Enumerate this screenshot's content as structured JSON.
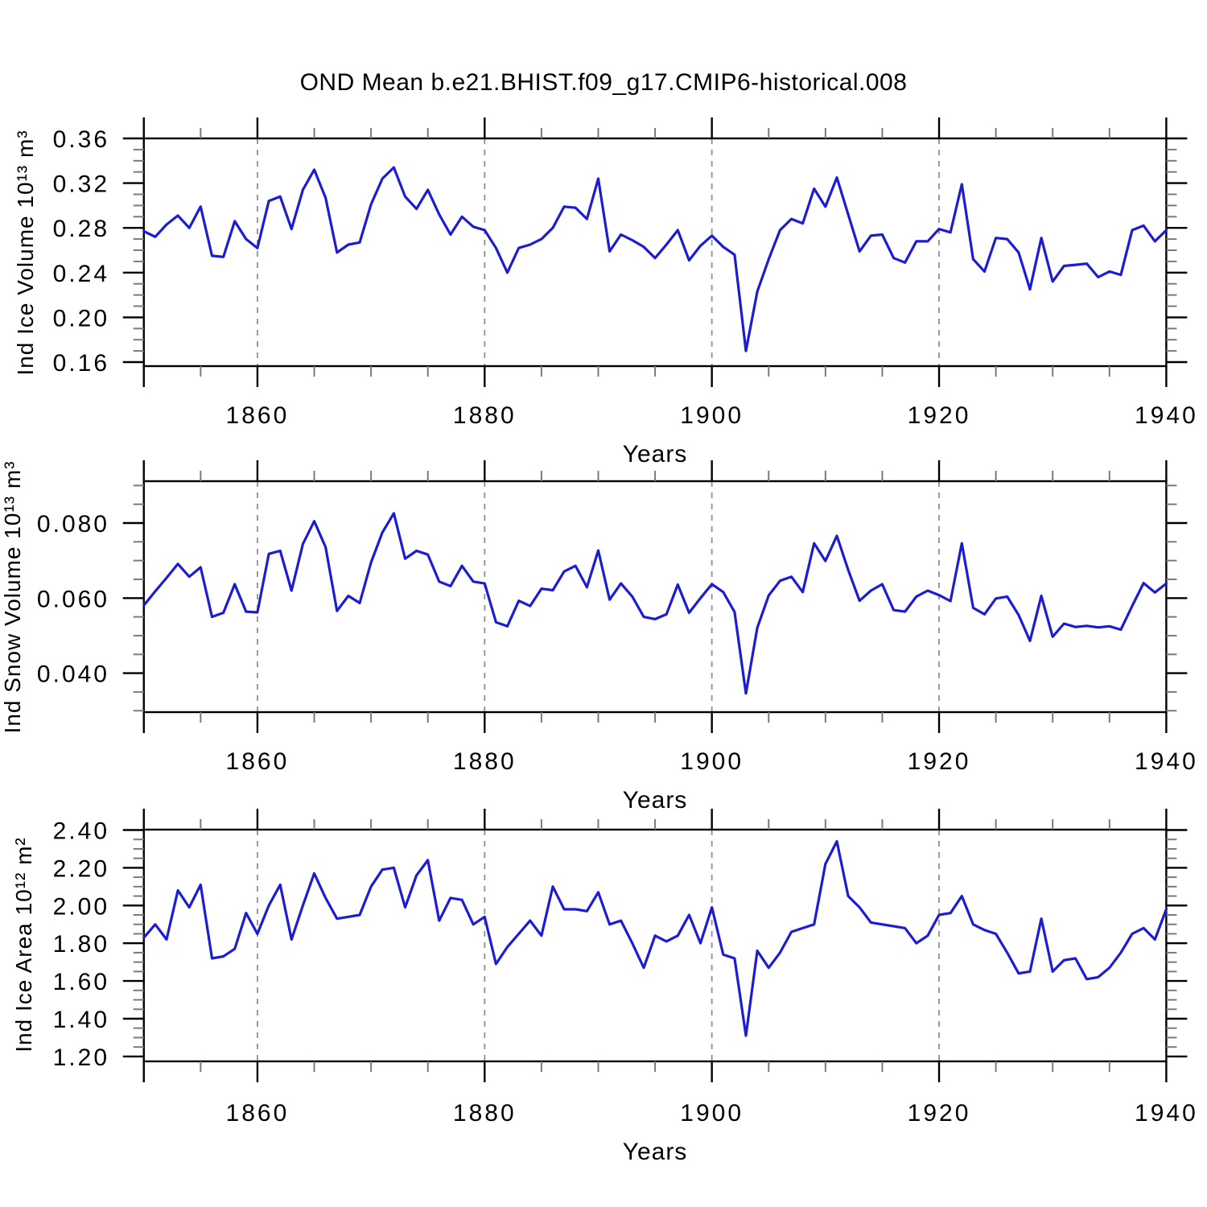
{
  "page_title": "OND Mean b.e21.BHIST.f09_g17.CMIP6-historical.008",
  "colors": {
    "line": "#1c1cd2",
    "grid": "#909090",
    "axis": "#000000",
    "background": "#ffffff"
  },
  "chart_data": [
    {
      "type": "line",
      "id": "ice-volume",
      "title": "OND Mean b.e21.BHIST.f09_g17.CMIP6-historical.008",
      "ylabel": "Ind Ice Volume 10¹³ m³",
      "xlabel": "Years",
      "x_start": 1850,
      "x_end": 1940,
      "x_step": 1,
      "xtick_labels": [
        "1860",
        "1880",
        "1900",
        "1920",
        "1940"
      ],
      "grid_years": [
        1860,
        1880,
        1900,
        1920
      ],
      "ylim": [
        0.156,
        0.36
      ],
      "ytick_minor_step": 0.01,
      "yticks": [
        {
          "v": 0.36,
          "label": "0.36"
        },
        {
          "v": 0.32,
          "label": "0.32"
        },
        {
          "v": 0.28,
          "label": "0.28"
        },
        {
          "v": 0.24,
          "label": "0.24"
        },
        {
          "v": 0.2,
          "label": "0.20"
        },
        {
          "v": 0.16,
          "label": "0.16"
        }
      ],
      "values": [
        0.277,
        0.272,
        0.283,
        0.291,
        0.28,
        0.299,
        0.255,
        0.254,
        0.286,
        0.27,
        0.262,
        0.304,
        0.308,
        0.279,
        0.314,
        0.332,
        0.307,
        0.258,
        0.265,
        0.267,
        0.301,
        0.324,
        0.334,
        0.308,
        0.297,
        0.314,
        0.292,
        0.274,
        0.29,
        0.281,
        0.278,
        0.262,
        0.24,
        0.262,
        0.265,
        0.27,
        0.28,
        0.299,
        0.298,
        0.288,
        0.324,
        0.259,
        0.274,
        0.269,
        0.263,
        0.253,
        0.265,
        0.278,
        0.251,
        0.264,
        0.273,
        0.263,
        0.256,
        0.17,
        0.223,
        0.252,
        0.278,
        0.288,
        0.284,
        0.315,
        0.299,
        0.325,
        0.292,
        0.259,
        0.273,
        0.274,
        0.253,
        0.249,
        0.268,
        0.268,
        0.279,
        0.276,
        0.319,
        0.252,
        0.241,
        0.271,
        0.27,
        0.258,
        0.225,
        0.271,
        0.232,
        0.246,
        0.247,
        0.248,
        0.236,
        0.241,
        0.238,
        0.278,
        0.282,
        0.268,
        0.278
      ]
    },
    {
      "type": "line",
      "id": "snow-volume",
      "title": "",
      "ylabel": "Ind Snow Volume 10¹³ m³",
      "xlabel": "Years",
      "x_start": 1850,
      "x_end": 1940,
      "x_step": 1,
      "xtick_labels": [
        "1860",
        "1880",
        "1900",
        "1920",
        "1940"
      ],
      "grid_years": [
        1860,
        1880,
        1900,
        1920
      ],
      "ylim": [
        0.0296,
        0.0911
      ],
      "ytick_minor_step": 0.005,
      "yticks": [
        {
          "v": 0.08,
          "label": "0.080"
        },
        {
          "v": 0.06,
          "label": "0.060"
        },
        {
          "v": 0.04,
          "label": "0.040"
        }
      ],
      "values": [
        0.0581,
        0.0618,
        0.0654,
        0.0691,
        0.0657,
        0.0682,
        0.055,
        0.0561,
        0.0637,
        0.0564,
        0.0562,
        0.0718,
        0.0726,
        0.062,
        0.0744,
        0.0805,
        0.0736,
        0.0566,
        0.0606,
        0.0587,
        0.0695,
        0.0775,
        0.0826,
        0.0705,
        0.0726,
        0.0716,
        0.0644,
        0.0632,
        0.0686,
        0.0644,
        0.0639,
        0.0536,
        0.0525,
        0.0593,
        0.0579,
        0.0625,
        0.0621,
        0.0671,
        0.0686,
        0.0629,
        0.0727,
        0.0596,
        0.0639,
        0.0604,
        0.055,
        0.0544,
        0.0557,
        0.0636,
        0.0561,
        0.06,
        0.0637,
        0.0616,
        0.0563,
        0.0346,
        0.0521,
        0.0607,
        0.0646,
        0.0657,
        0.0616,
        0.0746,
        0.0699,
        0.0766,
        0.0675,
        0.0593,
        0.062,
        0.0637,
        0.0568,
        0.0564,
        0.0604,
        0.062,
        0.0608,
        0.0592,
        0.0746,
        0.0574,
        0.0557,
        0.0599,
        0.0604,
        0.0555,
        0.0486,
        0.0606,
        0.0497,
        0.0532,
        0.0523,
        0.0526,
        0.0522,
        0.0525,
        0.0516,
        0.0579,
        0.064,
        0.0615,
        0.0639
      ]
    },
    {
      "type": "line",
      "id": "ice-area",
      "title": "",
      "ylabel": "Ind Ice Area 10¹² m²",
      "xlabel": "Years",
      "x_start": 1850,
      "x_end": 1940,
      "x_step": 1,
      "xtick_labels": [
        "1860",
        "1880",
        "1900",
        "1920",
        "1940"
      ],
      "grid_years": [
        1860,
        1880,
        1900,
        1920
      ],
      "ylim": [
        1.17,
        2.4
      ],
      "ytick_minor_step": 0.05,
      "yticks": [
        {
          "v": 2.4,
          "label": "2.40"
        },
        {
          "v": 2.2,
          "label": "2.20"
        },
        {
          "v": 2.0,
          "label": "2.00"
        },
        {
          "v": 1.8,
          "label": "1.80"
        },
        {
          "v": 1.6,
          "label": "1.60"
        },
        {
          "v": 1.4,
          "label": "1.40"
        },
        {
          "v": 1.2,
          "label": "1.20"
        }
      ],
      "values": [
        1.83,
        1.9,
        1.82,
        2.08,
        1.99,
        2.11,
        1.72,
        1.73,
        1.77,
        1.96,
        1.85,
        2.0,
        2.11,
        1.82,
        2.0,
        2.17,
        2.04,
        1.93,
        1.94,
        1.95,
        2.1,
        2.19,
        2.2,
        1.99,
        2.16,
        2.24,
        1.92,
        2.04,
        2.03,
        1.9,
        1.94,
        1.69,
        1.78,
        1.85,
        1.92,
        1.84,
        2.1,
        1.98,
        1.98,
        1.97,
        2.07,
        1.9,
        1.92,
        1.8,
        1.67,
        1.84,
        1.81,
        1.84,
        1.95,
        1.8,
        1.99,
        1.74,
        1.72,
        1.31,
        1.76,
        1.67,
        1.75,
        1.86,
        1.88,
        1.9,
        2.22,
        2.34,
        2.05,
        1.99,
        1.91,
        1.9,
        1.89,
        1.88,
        1.8,
        1.84,
        1.95,
        1.96,
        2.05,
        1.9,
        1.87,
        1.85,
        1.75,
        1.64,
        1.65,
        1.93,
        1.65,
        1.71,
        1.72,
        1.61,
        1.62,
        1.67,
        1.75,
        1.85,
        1.88,
        1.82,
        1.98
      ]
    }
  ]
}
